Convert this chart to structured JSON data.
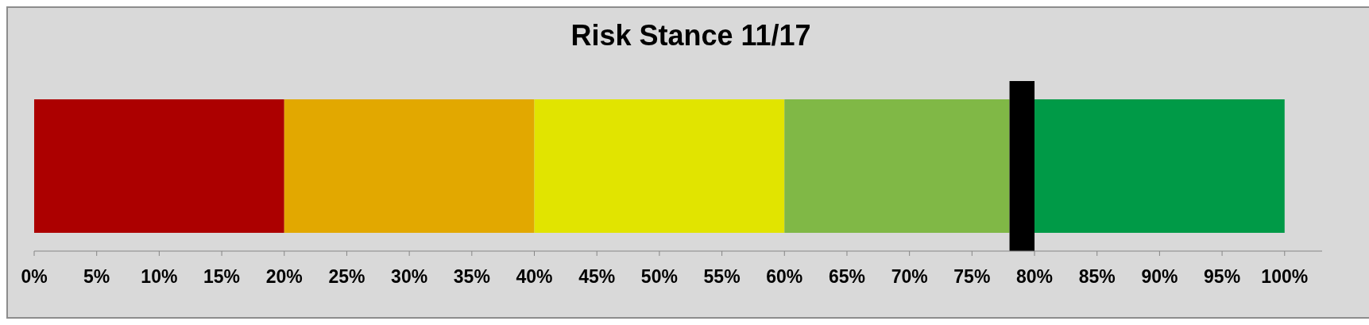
{
  "chart_data": {
    "type": "bar",
    "orientation": "horizontal",
    "stacked": true,
    "title": "Risk Stance 11/17",
    "categories": [
      null
    ],
    "series": [
      {
        "color": "#ac0000",
        "values": [
          20
        ]
      },
      {
        "color": "#e2a800",
        "values": [
          20
        ]
      },
      {
        "color": "#e1e400",
        "values": [
          20
        ]
      },
      {
        "color": "#80b846",
        "values": [
          18
        ]
      },
      {
        "color": "#000000",
        "values": [
          2
        ]
      },
      {
        "color": "#009a47",
        "values": [
          20
        ]
      }
    ],
    "xlim": [
      0,
      103
    ],
    "xticks": [
      {
        "value": 0,
        "label": "0%"
      },
      {
        "value": 5,
        "label": "5%"
      },
      {
        "value": 10,
        "label": "10%"
      },
      {
        "value": 15,
        "label": "15%"
      },
      {
        "value": 20,
        "label": "20%"
      },
      {
        "value": 25,
        "label": "25%"
      },
      {
        "value": 30,
        "label": "30%"
      },
      {
        "value": 35,
        "label": "35%"
      },
      {
        "value": 40,
        "label": "40%"
      },
      {
        "value": 45,
        "label": "45%"
      },
      {
        "value": 50,
        "label": "50%"
      },
      {
        "value": 55,
        "label": "55%"
      },
      {
        "value": 60,
        "label": "60%"
      },
      {
        "value": 65,
        "label": "65%"
      },
      {
        "value": 70,
        "label": "70%"
      },
      {
        "value": 75,
        "label": "75%"
      },
      {
        "value": 80,
        "label": "80%"
      },
      {
        "value": 85,
        "label": "85%"
      },
      {
        "value": 90,
        "label": "90%"
      },
      {
        "value": 95,
        "label": "95%"
      },
      {
        "value": 100,
        "label": "100%"
      }
    ],
    "grid": false,
    "legend": false
  }
}
